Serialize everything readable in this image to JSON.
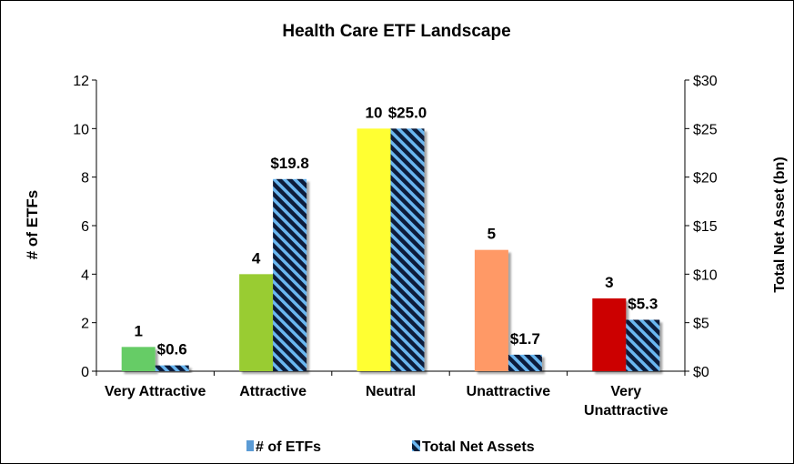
{
  "chart_data": {
    "type": "bar",
    "title": "Health Care ETF Landscape",
    "categories": [
      "Very Attractive",
      "Attractive",
      "Neutral",
      "Unattractive",
      "Very Unattractive"
    ],
    "series": [
      {
        "name": "# of ETFs",
        "axis": "left",
        "values": [
          1,
          4,
          10,
          5,
          3
        ],
        "value_labels": [
          "1",
          "4",
          "10",
          "5",
          "3"
        ],
        "colors": [
          "#66CC66",
          "#99CC33",
          "#FFFF33",
          "#FF9966",
          "#CC0000"
        ],
        "legend_color": "#5B9BD5"
      },
      {
        "name": "Total Net Assets",
        "axis": "right",
        "values": [
          0.6,
          19.8,
          25.0,
          1.7,
          5.3
        ],
        "value_labels": [
          "$0.6",
          "$19.8",
          "$25.0",
          "$1.7",
          "$5.3"
        ],
        "pattern_colors": [
          "#0A1E3A",
          "#6BB6F0"
        ]
      }
    ],
    "ylabel": "# of ETFs",
    "ylim": [
      0,
      12
    ],
    "yticks": [
      "0",
      "2",
      "4",
      "6",
      "8",
      "10",
      "12"
    ],
    "y2label": "Total Net Asset (bn)",
    "y2lim": [
      0,
      30
    ],
    "y2ticks": [
      "$0",
      "$5",
      "$10",
      "$15",
      "$20",
      "$25",
      "$30"
    ],
    "grid": false,
    "legend_position": "bottom"
  }
}
